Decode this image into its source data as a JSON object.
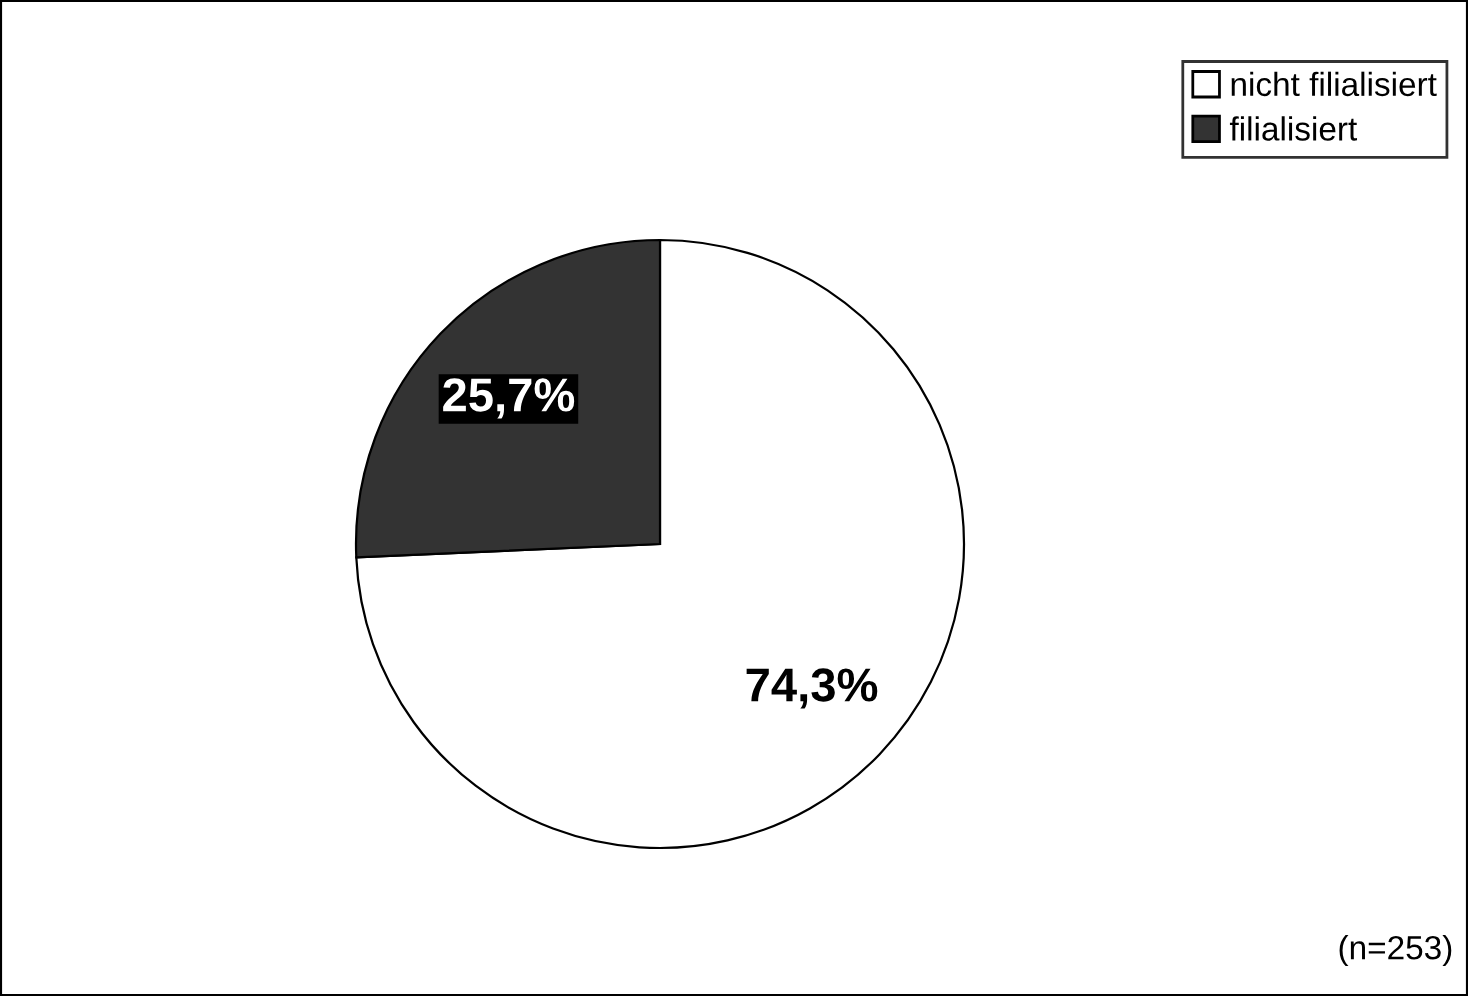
{
  "chart_data": {
    "type": "pie",
    "categories": [
      "nicht filialisiert",
      "filialisiert"
    ],
    "values": [
      74.3,
      25.7
    ],
    "colors": [
      "#ffffff",
      "#333333"
    ],
    "value_labels": [
      "74,3%",
      "25,7%"
    ],
    "legend": "top right",
    "annotations": [
      "(n=253)"
    ]
  }
}
